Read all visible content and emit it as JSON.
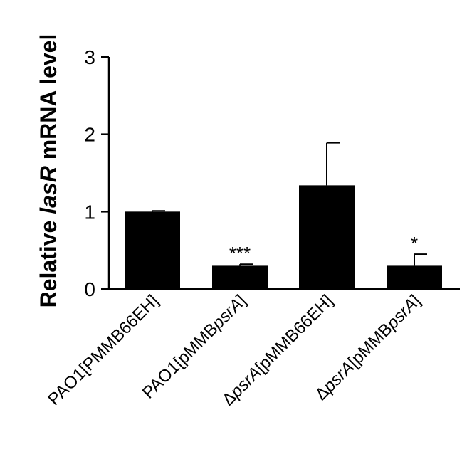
{
  "chart_data": {
    "type": "bar",
    "categories": [
      {
        "name": "PAO1[PMMB66EH]",
        "parts": [
          {
            "t": "PAO1[PMMB66EH]",
            "i": false
          }
        ]
      },
      {
        "name": "PAO1[pMMBpsrA]",
        "parts": [
          {
            "t": "PAO1[pMMB",
            "i": false
          },
          {
            "t": "psrA",
            "i": true
          },
          {
            "t": "]",
            "i": false
          }
        ]
      },
      {
        "name": "ΔpsrA[pMMB66EH]",
        "parts": [
          {
            "t": "Δ",
            "i": false
          },
          {
            "t": "psrA",
            "i": true
          },
          {
            "t": "[pMMB66EH]",
            "i": false
          }
        ]
      },
      {
        "name": "ΔpsrA[pMMBpsrA]",
        "parts": [
          {
            "t": "Δ",
            "i": false
          },
          {
            "t": "psrA",
            "i": true
          },
          {
            "t": "[pMMB",
            "i": false
          },
          {
            "t": "psrA",
            "i": true
          },
          {
            "t": "]",
            "i": false
          }
        ]
      }
    ],
    "values": [
      1.0,
      0.3,
      1.34,
      0.3
    ],
    "errors": [
      0.01,
      0.02,
      0.55,
      0.15
    ],
    "significance": [
      "",
      "***",
      "",
      "*"
    ],
    "ylabel": {
      "parts": [
        {
          "t": "Relative ",
          "i": false
        },
        {
          "t": "lasR",
          "i": true
        },
        {
          "t": " mRNA level",
          "i": false
        }
      ]
    },
    "ylim": [
      0,
      3
    ],
    "yticks": [
      0,
      1,
      2,
      3
    ],
    "colors": {
      "bar": "#000000",
      "axis": "#000000"
    },
    "grid": false,
    "legend": "none"
  }
}
